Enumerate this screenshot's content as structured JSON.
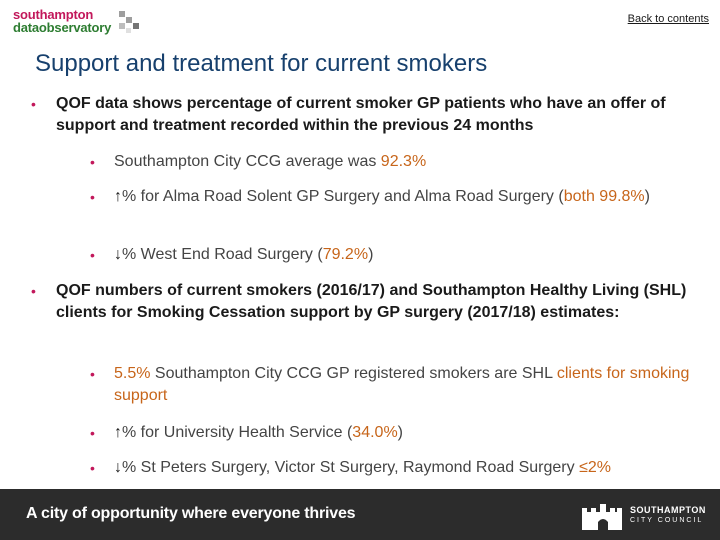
{
  "header": {
    "logo_line1": "southampton",
    "logo_line2": "dataobservatory",
    "back_link": "Back to contents"
  },
  "title": "Support and treatment for current smokers",
  "bullets": {
    "b1": "QOF data shows percentage of current smoker GP patients who have an offer of support and treatment recorded within the previous 24 months",
    "b1_1_text": "Southampton City CCG average was ",
    "b1_1_value": "92.3%",
    "b1_2_arrow": "↑",
    "b1_2_text": "% for Alma Road Solent GP Surgery and Alma Road Surgery (",
    "b1_2_value": "both 99.8%",
    "b1_2_end": ")",
    "b1_3_arrow": "↓",
    "b1_3_text": "% West End Road Surgery (",
    "b1_3_value": "79.2%",
    "b1_3_end": ")",
    "b2": "QOF numbers of current smokers (2016/17) and Southampton Healthy Living (SHL) clients for Smoking Cessation support by GP surgery (2017/18) estimates:",
    "b2_1_value": "5.5%",
    "b2_1_text": " Southampton City CCG GP registered smokers are SHL ",
    "b2_1_value2": "clients for smoking support",
    "b2_2_arrow": "↑",
    "b2_2_text": "% for University Health Service (",
    "b2_2_value": "34.0%",
    "b2_2_end": ")",
    "b2_3_arrow": "↓",
    "b2_3_text": "% St Peters Surgery, Victor St Surgery, Raymond Road Surgery ",
    "b2_3_value": "≤2%"
  },
  "footer": {
    "tagline": "A city of opportunity where everyone thrives",
    "council_line1": "SOUTHAMPTON",
    "council_line2": "CITY COUNCIL"
  },
  "colors": {
    "title": "#17406d",
    "bullet": "#c2185b",
    "highlight": "#c7651a",
    "footer_bg": "#2c2c2c"
  }
}
